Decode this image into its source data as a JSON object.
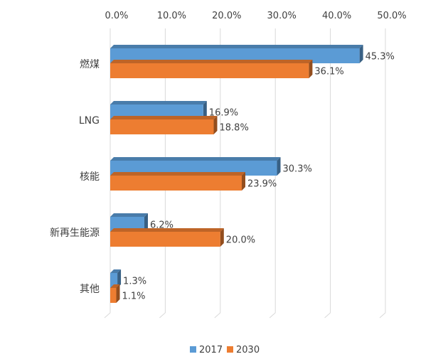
{
  "chart_data": {
    "type": "bar",
    "orientation": "horizontal",
    "style": "3d-clustered",
    "categories": [
      "燃煤",
      "LNG",
      "核能",
      "新再生能源",
      "其他"
    ],
    "series": [
      {
        "name": "2017",
        "color": "#5b9bd5",
        "values": [
          45.3,
          16.9,
          30.3,
          6.2,
          1.3
        ],
        "labels": [
          "45.3%",
          "16.9%",
          "30.3%",
          "6.2%",
          "1.3%"
        ]
      },
      {
        "name": "2030",
        "color": "#ed7d31",
        "values": [
          36.1,
          18.8,
          23.9,
          20.0,
          1.1
        ],
        "labels": [
          "36.1%",
          "18.8%",
          "23.9%",
          "20.0%",
          "1.1%"
        ]
      }
    ],
    "xlim": [
      0,
      50
    ],
    "xticks": [
      0,
      10,
      20,
      30,
      40,
      50
    ],
    "xtick_labels": [
      "0.0%",
      "10.0%",
      "20.0%",
      "30.0%",
      "40.0%",
      "50.0%"
    ],
    "axis_position": "top",
    "grid": true,
    "legend_position": "bottom",
    "title": "",
    "xlabel": "",
    "ylabel": ""
  }
}
